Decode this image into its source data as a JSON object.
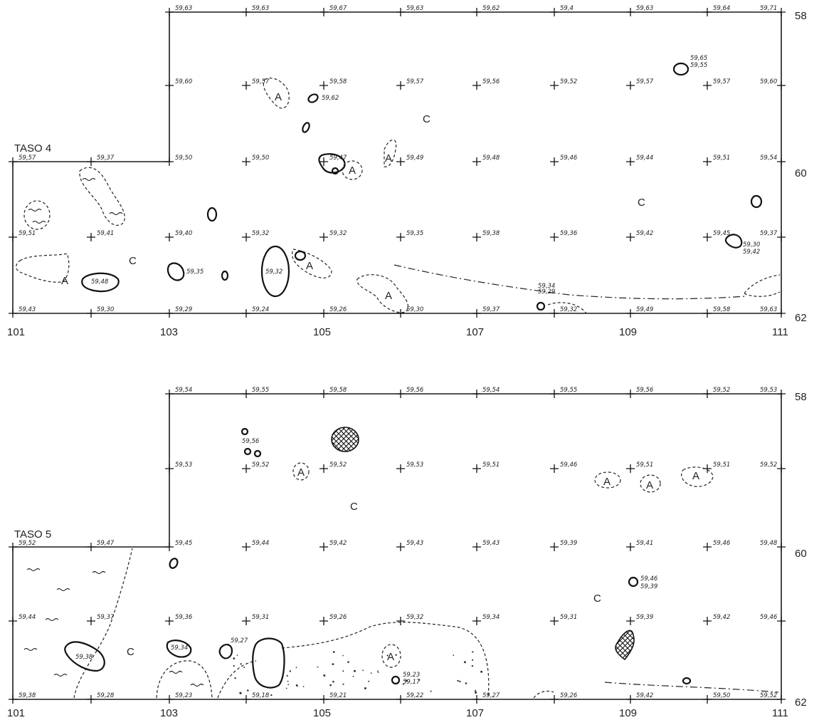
{
  "panels": [
    {
      "id": "taso4",
      "label": "TASO 4",
      "x_ticks": [
        "101",
        "103",
        "105",
        "107",
        "109",
        "111"
      ],
      "y_ticks": [
        "58",
        "60",
        "62"
      ],
      "elevations": {
        "row58": [
          "59,63",
          "59,63",
          "59,67",
          "59,63",
          "59,62",
          "59,4",
          "59,63",
          "59,64",
          "59,71"
        ],
        "row59": [
          "59,60",
          "59,57",
          "59,58",
          "59,57",
          "59,56",
          "59,52",
          "59,57",
          "59,57",
          "59,60"
        ],
        "row60": [
          "59,57",
          "59,37",
          "59,50",
          "59,50",
          "59,47",
          "59,49",
          "59,48",
          "59,46",
          "59,44",
          "59,51",
          "59,54"
        ],
        "row61": [
          "59,51",
          "59,41",
          "59,40",
          "59,32",
          "59,32",
          "59,35",
          "59,38",
          "59,36",
          "59,42",
          "59,45",
          "59,37"
        ],
        "row62": [
          "59,43",
          "59,30",
          "59,29",
          "59,24",
          "59,26",
          "59,30",
          "59,37",
          "59,32",
          "59,49",
          "59,58",
          "59,63"
        ]
      },
      "feature_labels": {
        "a1": "59,65",
        "a2": "59,55",
        "b": "59,62",
        "c": "59,48",
        "d": "59,35",
        "e": "59,32",
        "f1": "59,34",
        "f2": "59,29",
        "g1": "59,30",
        "g2": "59,42"
      },
      "letters": [
        "C",
        "C",
        "C",
        "A",
        "A",
        "A",
        "A",
        "A",
        "A"
      ]
    },
    {
      "id": "taso5",
      "label": "TASO 5",
      "x_ticks": [
        "101",
        "103",
        "105",
        "107",
        "109",
        "111"
      ],
      "y_ticks": [
        "58",
        "60",
        "62"
      ],
      "elevations": {
        "row58": [
          "59,54",
          "59,55",
          "59,58",
          "59,56",
          "59,54",
          "59,55",
          "59,56",
          "59,52",
          "59,53"
        ],
        "row59": [
          "59,53",
          "59,52",
          "59,52",
          "59,53",
          "59,51",
          "59,46",
          "59,51",
          "59,51",
          "59,52"
        ],
        "row60": [
          "59,52",
          "59,47",
          "59,45",
          "59,44",
          "59,42",
          "59,43",
          "59,43",
          "59,39",
          "59,41",
          "59,46",
          "59,48"
        ],
        "row61": [
          "59,44",
          "59,37",
          "59,36",
          "59,31",
          "59,26",
          "59,32",
          "59,34",
          "59,31",
          "59,39",
          "59,42",
          "59,46"
        ],
        "row62": [
          "59,38",
          "59,28",
          "59,23",
          "59,18",
          "59,21",
          "59,22",
          "59,27",
          "59,26",
          "59,42",
          "59,50",
          "59,52"
        ]
      },
      "feature_labels": {
        "a": "59,56",
        "b1": "59,46",
        "b2": "59,39",
        "c": "59,38",
        "d": "59,34",
        "e": "59,27",
        "f1": "59,23",
        "f2": "59,17"
      },
      "letters": [
        "C",
        "C",
        "C",
        "A",
        "A",
        "A",
        "A",
        "A"
      ]
    }
  ]
}
